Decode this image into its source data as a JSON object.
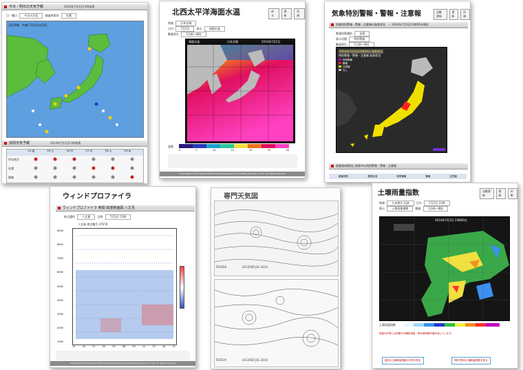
{
  "card_weather": {
    "title": "今日・明日の天気予報",
    "caption": "2014年7月3日11時発表",
    "sub_title": "天気予報　今夜(7月3日)の天気",
    "weekly_title": "週間天気予報",
    "weekly_caption": "2014年7月3日11時発表",
    "labels": [
      "日・曜日",
      "都道府県別"
    ],
    "select_values": [
      "今日の天気",
      "札幌"
    ],
    "days": [
      "7/4\n金",
      "7/5\n土",
      "7/6\n日",
      "7/7\n月",
      "7/8\n火",
      "7/9\n水"
    ],
    "regions": [
      "宗谷地方",
      "札幌",
      "釧路"
    ]
  },
  "card_sst": {
    "title": "北西太平洋海面水温",
    "buttons": [
      "戻る",
      "更新",
      "印刷"
    ],
    "labels": [
      "地域",
      "日付",
      "表示",
      "動画再生"
    ],
    "select_values": [
      "日本全域",
      "7月2日",
      "海面水温",
      "1日前～現在"
    ],
    "map_titles": [
      "海面水温",
      "日本全域",
      "2014年7月2日"
    ],
    "legend_title": "温度",
    "legend_values": [
      "0",
      "5",
      "10",
      "15",
      "20",
      "25",
      "30"
    ],
    "legend_colors": [
      "#2a1a7a",
      "#2a3ab8",
      "#1ea0d0",
      "#2cc89a",
      "#f0e040",
      "#f07020",
      "#e01060",
      "#ff40c0"
    ],
    "copyright": "Copyright(C) 2014 Applied Meteorological Engineering Consulting Services Co.,Ltd. All rights reserved."
  },
  "card_warning": {
    "title": "気象特別警報・警報・注意報",
    "buttons": [
      "自動更新",
      "更新",
      "印刷"
    ],
    "sub_title": "気象特別警報・警報・注意報の発表状況　－ 2014年7月3日21時00分現在",
    "labels": [
      "都道府県選択",
      "表示切替",
      "動画再生"
    ],
    "select_values": [
      "全国",
      "特別警報",
      "1日前～現在"
    ],
    "map_caption": "2014年7月3日21時00分 発表状況",
    "legend_title": "特別警報・警報・注意報 発表状況",
    "legend": [
      {
        "label": "特別警報",
        "color": "#c000c0"
      },
      {
        "label": "警報",
        "color": "#ff2020"
      },
      {
        "label": "注意報",
        "color": "#f0e000"
      },
      {
        "label": "なし",
        "color": "#bbbbbb"
      }
    ],
    "bottom_title": "各都道府県別に発表中の特別警報・警報・注意報",
    "table_headers": [
      "都道府県",
      "発表区域",
      "特別警報",
      "警報",
      "注意報"
    ]
  },
  "card_wind": {
    "title": "ウィンドプロファイラ",
    "sub_title": "ウィンドプロファイラ 時間-高度断面図  八丈島",
    "labels": [
      "地点選択",
      "日時"
    ],
    "select_values": [
      "八丈島",
      "7月3日 21時"
    ],
    "station_caption": "八丈島  地点番号 47678",
    "time_ticks": [
      "15",
      "18",
      "21",
      "00",
      "03",
      "06",
      "09",
      "12",
      "15",
      "18",
      "21"
    ],
    "height_ticks": [
      "9000",
      "8000",
      "7000",
      "6000",
      "5000",
      "4000",
      "3000",
      "2000",
      "1000"
    ],
    "copyright": "Copyright(C) 2014 Applied Meteorological Engineering Consulting Services Co.,Ltd. All rights reserved."
  },
  "card_fax": {
    "title": "専門天気図",
    "chart_codes": [
      "FEAS50",
      "FEFE19"
    ],
    "chart_footers": [
      "021200Z JUL 2014",
      "021200Z JUL 2014"
    ]
  },
  "card_soil": {
    "title": "土壌雨量指数",
    "buttons": [
      "自動更新",
      "更新",
      "印刷"
    ],
    "labels": [
      "地域",
      "日付",
      "表示",
      "動画"
    ],
    "select_values": [
      "九州地方 北部",
      "7月3日 21時",
      "土壌雨量指数",
      "1日前～現在"
    ],
    "map_caption": "2014年7月3日 21時00分",
    "legend_title": "土壌雨量指数",
    "legend_colors": [
      "#e8f8ff",
      "#9cd8f8",
      "#3c90f0",
      "#1f3cd0",
      "#34c040",
      "#f0f040",
      "#f09020",
      "#ff3030",
      "#c000c0"
    ],
    "note": "雨量の計算には気象庁の解析雨量・降水短時間予報を用いています。",
    "bottom_buttons": [
      "過去の土壌雨量指数の分布を見る",
      "市町村別の土壌雨量指数を見る"
    ]
  }
}
